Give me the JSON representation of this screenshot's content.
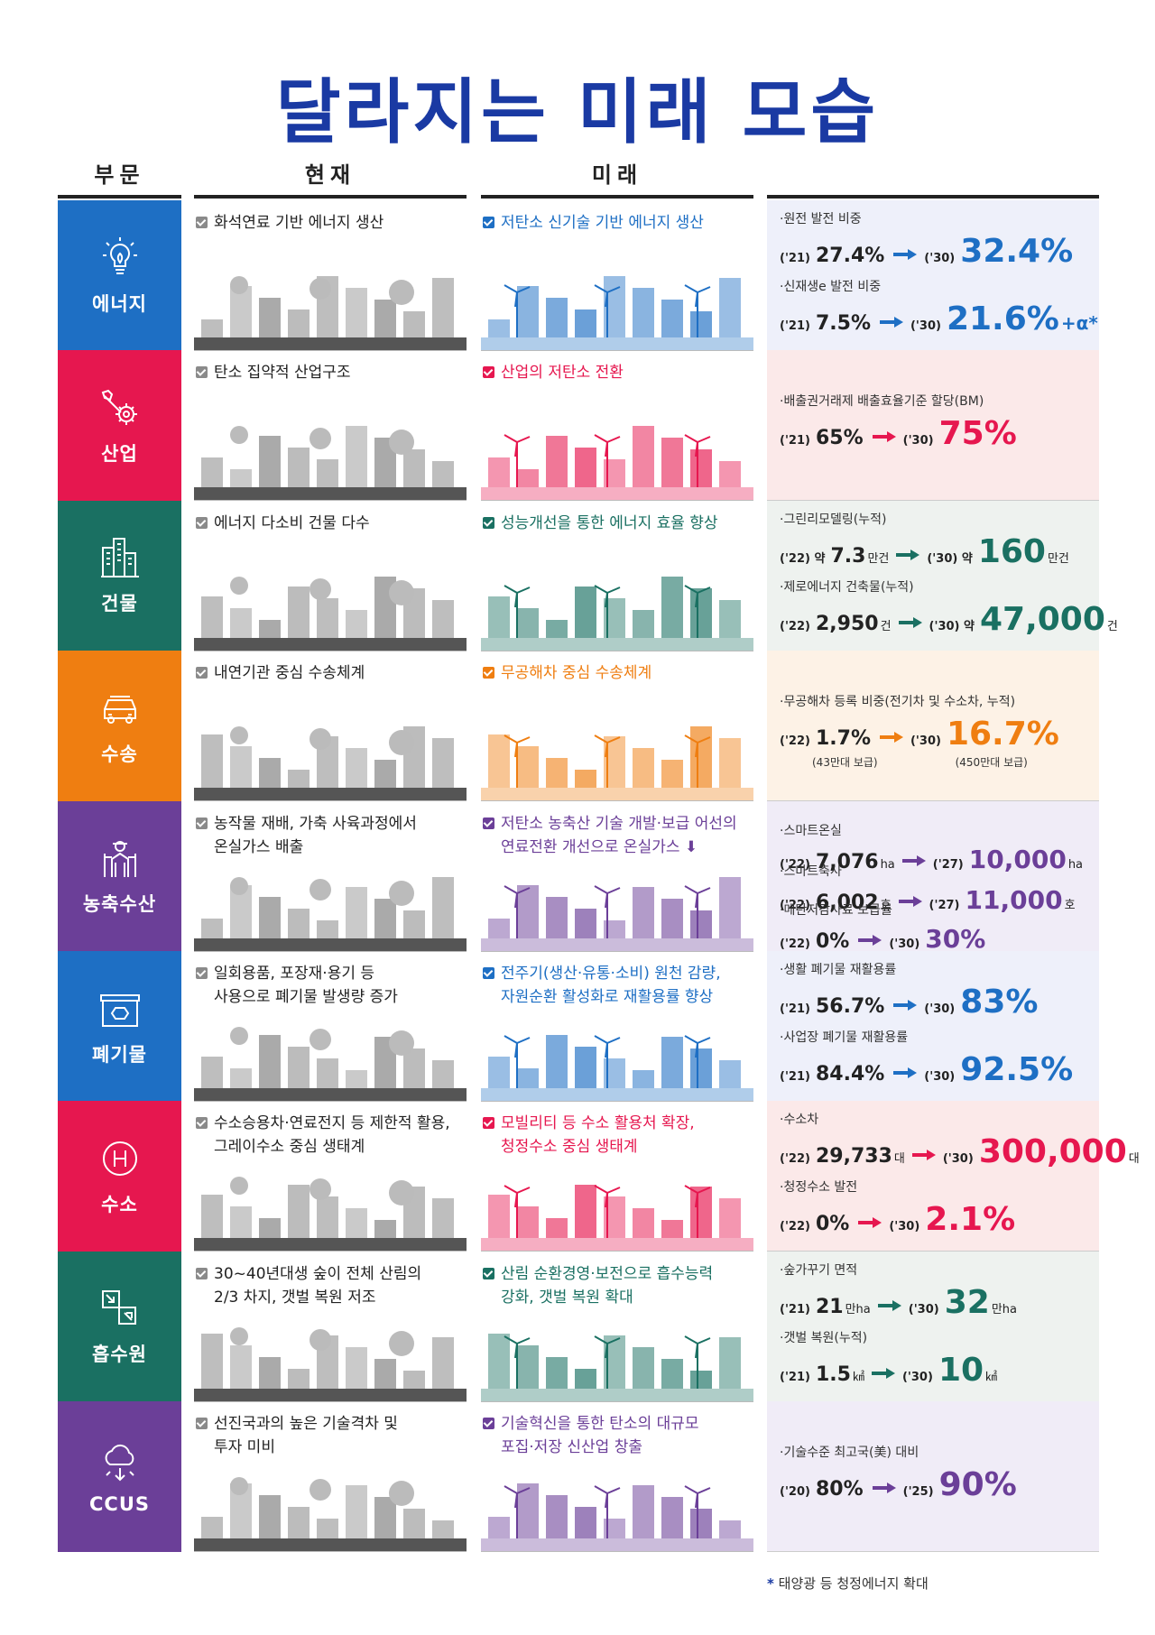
{
  "title": "달라지는 미래 모습",
  "headers": {
    "sector": "부문",
    "current": "현재",
    "future": "미래"
  },
  "colors": {
    "energy": "#1e6fc4",
    "industry": "#e6174f",
    "building": "#1a7062",
    "transport": "#ef7e11",
    "agri": "#6b3f98",
    "waste": "#1e6fc4",
    "hydrogen": "#e6174f",
    "sink": "#1a7062",
    "ccus": "#6b3f98"
  },
  "rows": [
    {
      "label": "에너지",
      "icon": "lightbulb-leaf-icon",
      "current": "화석연료 기반 에너지 생산",
      "future": "저탄소 신기술 기반 에너지 생산",
      "stats": [
        {
          "label": "·원전 발전 비중",
          "y1": "('21)",
          "v1": "27.4%",
          "u1": "",
          "y2": "('30)",
          "v2": "32.4%",
          "u2": ""
        },
        {
          "label": "·신재생e 발전 비중",
          "y1": "('21)",
          "v1": "7.5%",
          "u1": "",
          "y2": "('30)",
          "v2": "21.6%",
          "u2": "+α*"
        }
      ]
    },
    {
      "label": "산업",
      "icon": "wrench-gear-icon",
      "current": "탄소 집약적 산업구조",
      "future": "산업의 저탄소 전환",
      "stats": [
        {
          "label": "·배출권거래제 배출효율기준 할당(BM)",
          "y1": "('21)",
          "v1": "65%",
          "u1": "",
          "y2": "('30)",
          "v2": "75%",
          "u2": ""
        }
      ]
    },
    {
      "label": "건물",
      "icon": "buildings-icon",
      "current": "에너지 다소비 건물 다수",
      "future": "성능개선을 통한 에너지 효율 향상",
      "stats": [
        {
          "label": "·그린리모델링(누적)",
          "y1": "('22) 약",
          "v1": "7.3",
          "u1": "만건",
          "y2": "('30) 약",
          "v2": "160",
          "u2": "만건"
        },
        {
          "label": "·제로에너지 건축물(누적)",
          "y1": "('22)",
          "v1": "2,950",
          "u1": "건",
          "y2": "('30) 약",
          "v2": "47,000",
          "u2": "건"
        }
      ]
    },
    {
      "label": "수송",
      "icon": "car-icon",
      "current": "내연기관 중심 수송체계",
      "future": "무공해차 중심 수송체계",
      "stats": [
        {
          "label": "·무공해차 등록 비중(전기차 및 수소차, 누적)",
          "y1": "('22)",
          "v1": "1.7%",
          "u1": "",
          "y2": "('30)",
          "v2": "16.7%",
          "u2": "",
          "s1": "(43만대 보급)",
          "s2": "(450만대 보급)"
        }
      ]
    },
    {
      "label": "농축수산",
      "icon": "farmer-icon",
      "current": "농작물 재배, 가축 사육과정에서\n온실가스 배출",
      "future": "저탄소 농축산 기술 개발·보급 어선의\n연료전환 개선으로 온실가스 ⬇",
      "stats": [
        {
          "label": "·스마트온실",
          "y1": "('22)",
          "v1": "7,076",
          "u1": "ha",
          "y2": "('27)",
          "v2": "10,000",
          "u2": "ha"
        },
        {
          "label": "·스마트축사",
          "y1": "('22)",
          "v1": "6,002",
          "u1": "호",
          "y2": "('27)",
          "v2": "11,000",
          "u2": "호"
        },
        {
          "label": "·메탄저감사료 보급률",
          "y1": "('22)",
          "v1": "0%",
          "u1": "",
          "y2": "('30)",
          "v2": "30%",
          "u2": ""
        }
      ]
    },
    {
      "label": "폐기물",
      "icon": "recycle-box-icon",
      "current": "일회용품, 포장재·용기 등\n사용으로 폐기물 발생량 증가",
      "future": "전주기(생산·유통·소비) 원천 감량,\n자원순환 활성화로 재활용률 향상",
      "stats": [
        {
          "label": "·생활 폐기물 재활용률",
          "y1": "('21)",
          "v1": "56.7%",
          "u1": "",
          "y2": "('30)",
          "v2": "83%",
          "u2": ""
        },
        {
          "label": "·사업장 폐기물 재활용률",
          "y1": "('21)",
          "v1": "84.4%",
          "u1": "",
          "y2": "('30)",
          "v2": "92.5%",
          "u2": ""
        }
      ]
    },
    {
      "label": "수소",
      "icon": "hydrogen-icon",
      "current": "수소승용차·연료전지 등 제한적 활용,\n그레이수소 중심 생태계",
      "future": "모빌리티 등 수소 활용처 확장,\n청정수소 중심 생태계",
      "stats": [
        {
          "label": "·수소차",
          "y1": "('22)",
          "v1": "29,733",
          "u1": "대",
          "y2": "('30)",
          "v2": "300,000",
          "u2": "대"
        },
        {
          "label": "·청정수소 발전",
          "y1": "('22)",
          "v1": "0%",
          "u1": "",
          "y2": "('30)",
          "v2": "2.1%",
          "u2": ""
        }
      ]
    },
    {
      "label": "흡수원",
      "icon": "grid-arrows-icon",
      "current": "30~40년대생 숲이 전체 산림의\n2/3 차지, 갯벌 복원 저조",
      "future": "산림 순환경영·보전으로 흡수능력\n강화, 갯벌 복원 확대",
      "stats": [
        {
          "label": "·숲가꾸기 면적",
          "y1": "('21)",
          "v1": "21",
          "u1": "만ha",
          "y2": "('30)",
          "v2": "32",
          "u2": "만ha"
        },
        {
          "label": "·갯벌 복원(누적)",
          "y1": "('21)",
          "v1": "1.5",
          "u1": "㎢",
          "y2": "('30)",
          "v2": "10",
          "u2": "㎢"
        }
      ]
    },
    {
      "label": "CCUS",
      "icon": "co2-cloud-icon",
      "current": "선진국과의 높은 기술격차 및\n투자 미비",
      "future": "기술혁신을 통한 탄소의 대규모\n포집·저장 신산업 창출",
      "stats": [
        {
          "label": "·기술수준 최고국(美) 대비",
          "y1": "('20)",
          "v1": "80%",
          "u1": "",
          "y2": "('25)",
          "v2": "90%",
          "u2": ""
        }
      ]
    }
  ],
  "footnote_mark": "*",
  "footnote": "태양광 등 청정에너지 확대"
}
